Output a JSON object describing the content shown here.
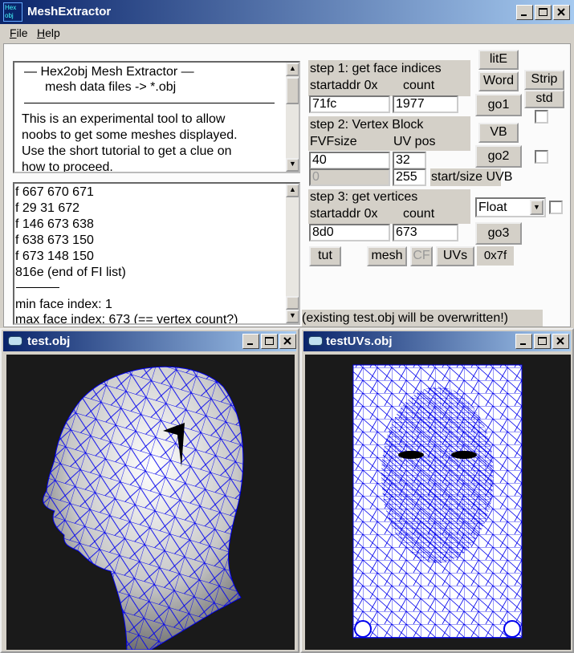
{
  "window": {
    "title": "MeshExtractor",
    "icon": [
      "Hex",
      "obj"
    ]
  },
  "menu": [
    "File",
    "Help"
  ],
  "info": {
    "heading": "—  Hex2obj Mesh Extractor  —",
    "subheading": "mesh data files -> *.obj",
    "body": [
      "This is an experimental tool to allow",
      "noobs to get some meshes displayed.",
      "Use the short tutorial to get a clue on",
      "how to proceed."
    ]
  },
  "log": {
    "lines_before": [
      "f  667 670 671",
      "f  29 31 672",
      "f  146 673 638",
      "f  638 673 150",
      "f  673 148 150",
      "816e (end of FI list)"
    ],
    "lines_after": [
      "min face index: 1",
      "max face index: 673 (== vertex count?)"
    ]
  },
  "step1": {
    "label": "step 1: get face indices",
    "startaddr_label": "startaddr 0x",
    "count_label": "count",
    "startaddr": "71fc",
    "count": "1977"
  },
  "step2": {
    "label": "step 2: Vertex Block",
    "fvf_label": "FVFsize",
    "uvpos_label": "UV pos",
    "fvfsize": "40",
    "uvpos": "32",
    "uvb_start": "0",
    "uvb_size": "255",
    "uvb_label": "start/size UVB"
  },
  "step3": {
    "label": "step 3: get vertices",
    "startaddr_label": "startaddr 0x",
    "count_label": "count",
    "startaddr": "8d0",
    "count": "673",
    "format": "Float"
  },
  "buttons": {
    "lite": "litE",
    "word": "Word",
    "strip": "Strip",
    "std": "std",
    "go1": "go1",
    "vb": "VB",
    "go2": "go2",
    "go3": "go3",
    "tut": "tut",
    "mesh": "mesh",
    "cf": "CF",
    "uvs": "UVs"
  },
  "status": "0x7f",
  "note": "(existing test.obj will be overwritten!)",
  "viewers": [
    "test.obj",
    "testUVs.obj"
  ]
}
